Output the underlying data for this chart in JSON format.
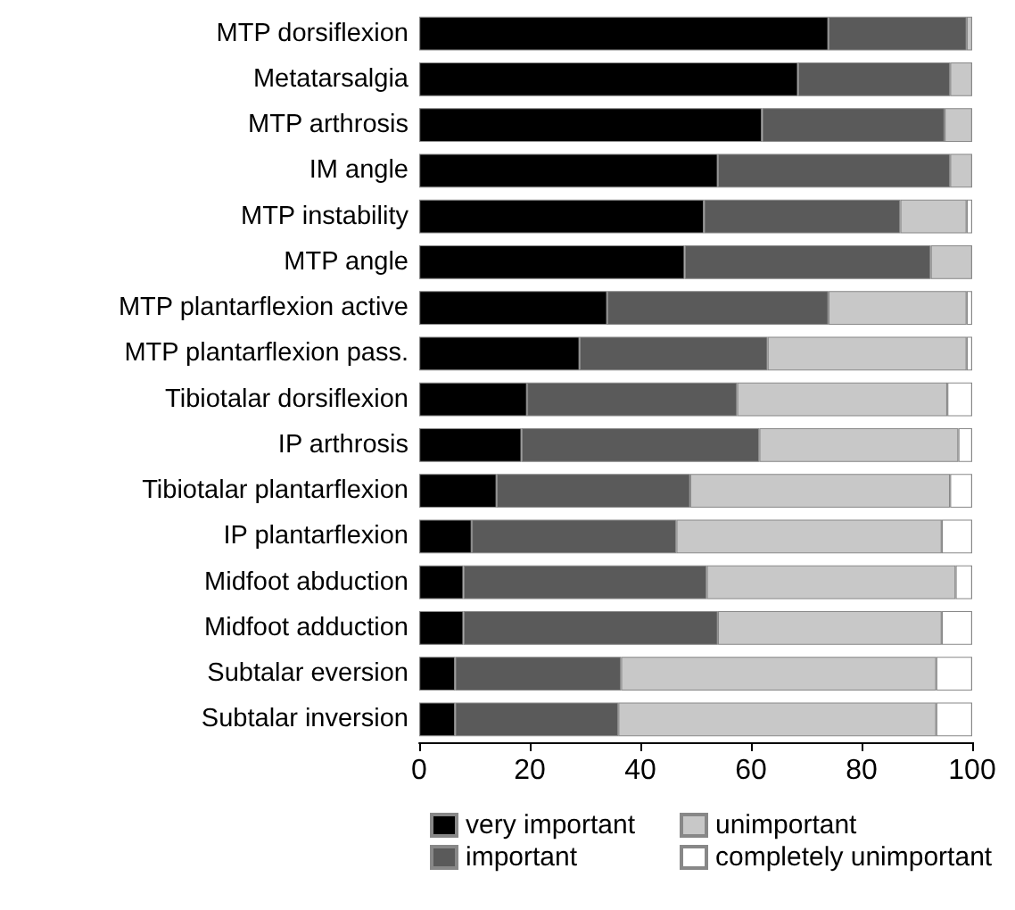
{
  "chart_data": {
    "type": "bar",
    "orientation": "horizontal",
    "stacked": true,
    "categories": [
      "MTP dorsiflexion",
      "Metatarsalgia",
      "MTP arthrosis",
      "IM angle",
      "MTP instability",
      "MTP angle",
      "MTP plantarflexion active",
      "MTP plantarflexion pass.",
      "Tibiotalar dorsiflexion",
      "IP arthrosis",
      "Tibiotalar plantarflexion",
      "IP plantarflexion",
      "Midfoot abduction",
      "Midfoot adduction",
      "Subtalar eversion",
      "Subtalar inversion"
    ],
    "series": [
      {
        "name": "very important",
        "color": "#000000",
        "values": [
          74,
          68.5,
          62,
          54,
          51.5,
          48,
          34,
          29,
          19.5,
          18.5,
          14,
          9.5,
          8,
          8,
          6.5,
          6.5
        ]
      },
      {
        "name": "important",
        "color": "#5a5a5a",
        "values": [
          25,
          27.5,
          33,
          42,
          35.5,
          44.5,
          40,
          34,
          38,
          43,
          35,
          37,
          44,
          46,
          30,
          29.5
        ]
      },
      {
        "name": "unimportant",
        "color": "#c8c8c8",
        "values": [
          1,
          4,
          5,
          4,
          12,
          7.5,
          25,
          36,
          38,
          36,
          47,
          48,
          45,
          40.5,
          57,
          57.5
        ]
      },
      {
        "name": "completely unimportant",
        "color": "#ffffff",
        "values": [
          0,
          0,
          0,
          0,
          1,
          0,
          1,
          1,
          4.5,
          2.5,
          4,
          5.5,
          3,
          5.5,
          6.5,
          6.5
        ]
      }
    ],
    "xlim": [
      0,
      100
    ],
    "xticks": [
      0,
      20,
      40,
      60,
      80,
      100
    ],
    "grid": false,
    "legend": "bottom"
  }
}
